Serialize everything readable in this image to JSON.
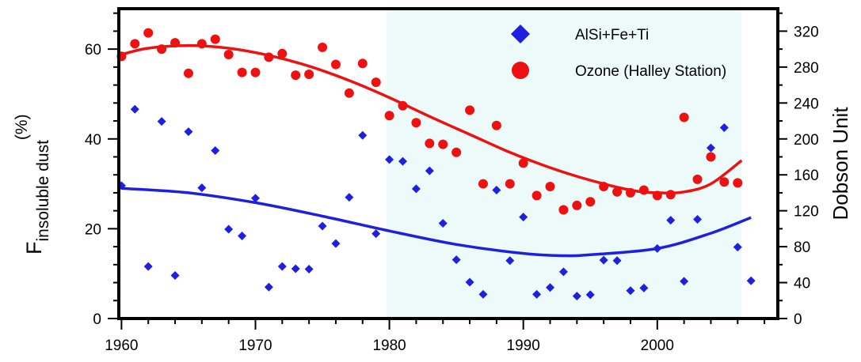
{
  "chart_data": {
    "type": "scatter",
    "x_axis": {
      "range": [
        1959.8,
        2009
      ],
      "ticks": [
        1960,
        1970,
        1980,
        1990,
        2000
      ],
      "tick_labels": [
        "1960",
        "1970",
        "1980",
        "1990",
        "2000"
      ]
    },
    "y_left": {
      "label_main": "F",
      "label_sub": "insoluble dust",
      "label_unit": "(%)",
      "range": [
        0,
        69
      ],
      "ticks": [
        0,
        20,
        40,
        60
      ],
      "tick_labels": [
        "0",
        "20",
        "40",
        "60"
      ]
    },
    "y_right": {
      "label": "Dobson Unit",
      "range": [
        0,
        345
      ],
      "ticks": [
        0,
        40,
        80,
        120,
        160,
        200,
        240,
        280,
        320
      ],
      "tick_labels": [
        "0",
        "40",
        "80",
        "120",
        "160",
        "200",
        "240",
        "280",
        "320"
      ]
    },
    "shaded_region": {
      "x_start": 1979.8,
      "x_end": 2006.3,
      "color": "#ecfafa"
    },
    "series": [
      {
        "name": "AlSi+Fe+Ti",
        "axis": "left",
        "marker": "diamond",
        "color": "#1f1fe0",
        "points": [
          [
            1960,
            29.6
          ],
          [
            1961,
            46.6
          ],
          [
            1962,
            11.6
          ],
          [
            1963,
            43.9
          ],
          [
            1964,
            9.6
          ],
          [
            1965,
            41.6
          ],
          [
            1966,
            29.1
          ],
          [
            1967,
            37.4
          ],
          [
            1968,
            19.9
          ],
          [
            1969,
            18.4
          ],
          [
            1970,
            26.8
          ],
          [
            1971,
            7.0
          ],
          [
            1972,
            11.6
          ],
          [
            1973,
            11.1
          ],
          [
            1974,
            11.0
          ],
          [
            1975,
            20.6
          ],
          [
            1976,
            16.7
          ],
          [
            1977,
            27.0
          ],
          [
            1978,
            40.8
          ],
          [
            1979,
            18.9
          ],
          [
            1980,
            35.4
          ],
          [
            1981,
            35.0
          ],
          [
            1982,
            28.9
          ],
          [
            1983,
            32.9
          ],
          [
            1984,
            21.2
          ],
          [
            1985,
            13.1
          ],
          [
            1986,
            8.1
          ],
          [
            1987,
            5.4
          ],
          [
            1988,
            28.6
          ],
          [
            1989,
            12.9
          ],
          [
            1990,
            22.6
          ],
          [
            1991,
            5.4
          ],
          [
            1992,
            6.9
          ],
          [
            1993,
            10.4
          ],
          [
            1994,
            5.0
          ],
          [
            1995,
            5.3
          ],
          [
            1996,
            13.0
          ],
          [
            1997,
            12.9
          ],
          [
            1998,
            6.2
          ],
          [
            1999,
            6.8
          ],
          [
            2000,
            15.6
          ],
          [
            2001,
            21.9
          ],
          [
            2002,
            8.3
          ],
          [
            2003,
            22.1
          ],
          [
            2004,
            38.0
          ],
          [
            2005,
            42.5
          ],
          [
            2006,
            15.9
          ],
          [
            2007,
            8.4
          ]
        ],
        "fit": [
          [
            1960,
            29.0
          ],
          [
            1965,
            28.0
          ],
          [
            1970,
            25.8
          ],
          [
            1975,
            22.8
          ],
          [
            1980,
            19.5
          ],
          [
            1985,
            16.5
          ],
          [
            1990,
            14.5
          ],
          [
            1993,
            14.0
          ],
          [
            1995,
            14.2
          ],
          [
            2000,
            15.6
          ],
          [
            2004,
            19.0
          ],
          [
            2007,
            22.5
          ]
        ]
      },
      {
        "name": "Ozone (Halley Station)",
        "axis": "right",
        "marker": "circle",
        "color": "#ee1111",
        "points": [
          [
            1960,
            292
          ],
          [
            1961,
            306
          ],
          [
            1962,
            318
          ],
          [
            1963,
            300
          ],
          [
            1964,
            307
          ],
          [
            1965,
            273
          ],
          [
            1966,
            306
          ],
          [
            1967,
            311
          ],
          [
            1968,
            294
          ],
          [
            1969,
            274
          ],
          [
            1970,
            274
          ],
          [
            1971,
            291
          ],
          [
            1972,
            295
          ],
          [
            1973,
            271
          ],
          [
            1974,
            272
          ],
          [
            1975,
            302
          ],
          [
            1976,
            283
          ],
          [
            1977,
            251
          ],
          [
            1978,
            284
          ],
          [
            1979,
            263
          ],
          [
            1980,
            226
          ],
          [
            1981,
            237
          ],
          [
            1982,
            218
          ],
          [
            1983,
            195
          ],
          [
            1984,
            194
          ],
          [
            1985,
            185
          ],
          [
            1986,
            232
          ],
          [
            1987,
            150
          ],
          [
            1988,
            215
          ],
          [
            1989,
            150
          ],
          [
            1990,
            173
          ],
          [
            1991,
            137
          ],
          [
            1992,
            147
          ],
          [
            1993,
            121
          ],
          [
            1994,
            126
          ],
          [
            1995,
            130
          ],
          [
            1996,
            147
          ],
          [
            1997,
            141
          ],
          [
            1998,
            140
          ],
          [
            1999,
            143
          ],
          [
            2000,
            137
          ],
          [
            2001,
            138
          ],
          [
            2002,
            224
          ],
          [
            2003,
            155
          ],
          [
            2004,
            180
          ],
          [
            2005,
            152
          ],
          [
            2006,
            151
          ]
        ],
        "fit": [
          [
            1960,
            294
          ],
          [
            1962,
            301
          ],
          [
            1965,
            304
          ],
          [
            1968,
            301
          ],
          [
            1971,
            293
          ],
          [
            1974,
            281
          ],
          [
            1977,
            265
          ],
          [
            1980,
            246
          ],
          [
            1983,
            225
          ],
          [
            1986,
            205
          ],
          [
            1989,
            185
          ],
          [
            1992,
            168
          ],
          [
            1995,
            154
          ],
          [
            1998,
            143
          ],
          [
            2000,
            140
          ],
          [
            2002,
            141
          ],
          [
            2004,
            150
          ],
          [
            2006.3,
            176
          ]
        ]
      }
    ],
    "legend": {
      "placement": "top-right"
    }
  }
}
